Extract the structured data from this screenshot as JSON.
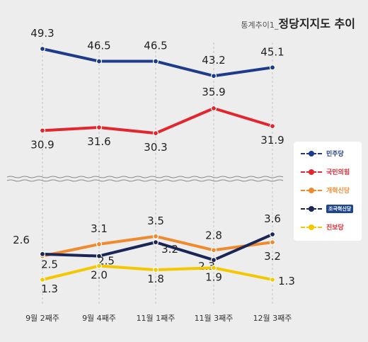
{
  "title": {
    "prefix": "통계추이1_",
    "main": "정당지지도 추이"
  },
  "chart_data": {
    "type": "line",
    "categories": [
      "9월 2째주",
      "9월 4째주",
      "11월 1째주",
      "11월 3째주",
      "12월 3째주"
    ],
    "axis_break": true,
    "series": [
      {
        "name": "민주당",
        "color": "#1e3a8a",
        "values": [
          49.3,
          46.5,
          46.5,
          43.2,
          45.1
        ]
      },
      {
        "name": "국민의힘",
        "color": "#e3262e",
        "values": [
          30.9,
          31.6,
          30.3,
          35.9,
          31.9
        ]
      },
      {
        "name": "개혁신당",
        "color": "#f08a2e",
        "values": [
          2.5,
          3.1,
          3.5,
          2.8,
          3.2
        ]
      },
      {
        "name": "조국혁신당",
        "color": "#1b2557",
        "values": [
          2.6,
          2.5,
          3.2,
          2.3,
          3.6
        ]
      },
      {
        "name": "진보당",
        "color": "#f4c800",
        "values": [
          1.3,
          2.0,
          1.8,
          1.9,
          1.3
        ]
      }
    ]
  }
}
